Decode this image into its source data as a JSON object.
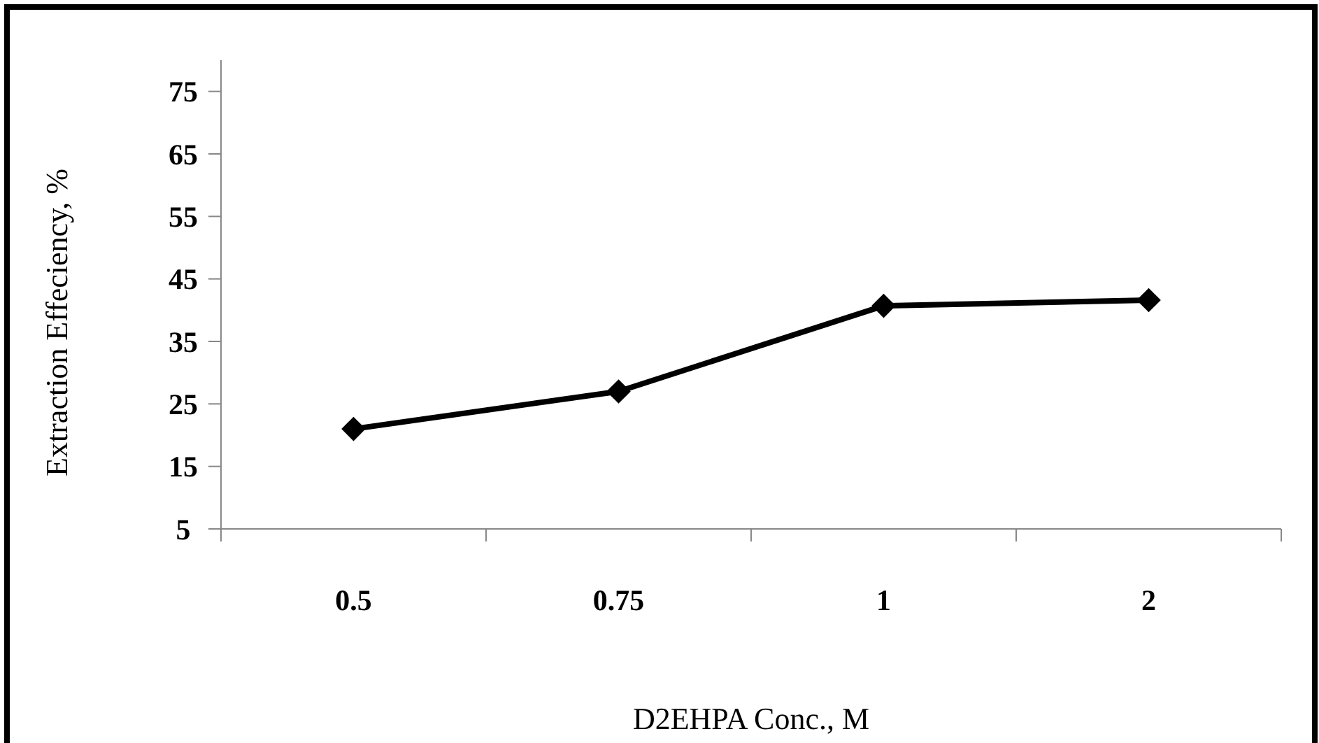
{
  "chart_data": {
    "type": "line",
    "xlabel": "D2EHPA Conc., M",
    "ylabel": "Extraction Effeciency, %",
    "categories": [
      "0.5",
      "0.75",
      "1",
      "2"
    ],
    "series": [
      {
        "color": "#000000",
        "values": [
          21,
          27,
          40.7,
          41.6
        ]
      }
    ],
    "ylim": [
      5,
      80
    ],
    "yticks": [
      5,
      15,
      25,
      35,
      45,
      55,
      65,
      75
    ],
    "grid": false,
    "marker": "diamond",
    "line_style": "solid"
  }
}
